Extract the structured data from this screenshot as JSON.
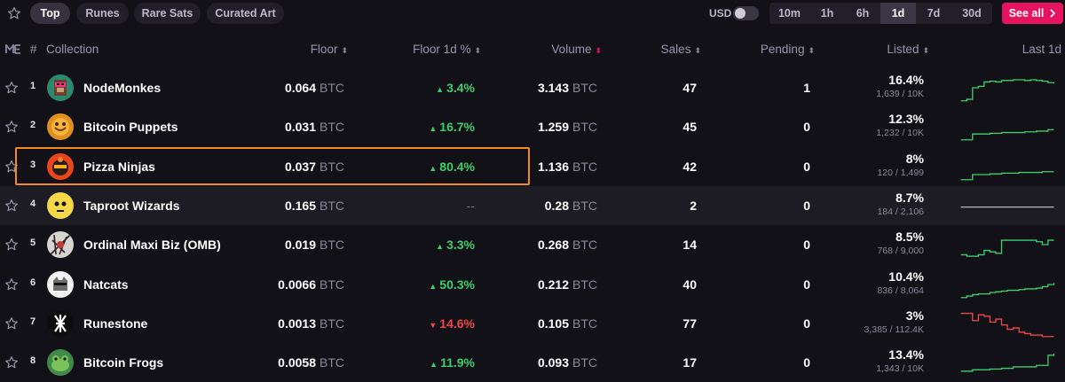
{
  "tabs": [
    {
      "label": "Top",
      "active": true
    },
    {
      "label": "Runes",
      "active": false
    },
    {
      "label": "Rare Sats",
      "active": false
    },
    {
      "label": "Curated Art",
      "active": false
    }
  ],
  "currency_toggle": {
    "label": "USD",
    "enabled": false
  },
  "timeframes": [
    {
      "label": "10m",
      "active": false
    },
    {
      "label": "1h",
      "active": false
    },
    {
      "label": "6h",
      "active": false
    },
    {
      "label": "1d",
      "active": true
    },
    {
      "label": "7d",
      "active": false
    },
    {
      "label": "30d",
      "active": false
    }
  ],
  "see_all_label": "See all",
  "columns": {
    "rank": "#",
    "collection": "Collection",
    "floor": "Floor",
    "floor_change": "Floor 1d %",
    "volume": "Volume",
    "sales": "Sales",
    "pending": "Pending",
    "listed": "Listed",
    "last": "Last 1d"
  },
  "rows": [
    {
      "rank": "1",
      "name": "NodeMonkes",
      "floor": "0.064",
      "floor_unit": "BTC",
      "change": "3.4%",
      "direction": "up",
      "volume": "3.143",
      "volume_unit": "BTC",
      "sales": "47",
      "pending": "1",
      "listed_pct": "16.4%",
      "listed_count": "1,639 / 10K",
      "spark_color": "#3ecf6b",
      "spark": [
        40,
        38,
        22,
        20,
        14,
        13,
        14,
        12,
        12,
        11,
        11,
        12,
        11,
        12,
        13,
        15,
        16
      ]
    },
    {
      "rank": "2",
      "name": "Bitcoin Puppets",
      "floor": "0.031",
      "floor_unit": "BTC",
      "change": "16.7%",
      "direction": "up",
      "volume": "1.259",
      "volume_unit": "BTC",
      "sales": "45",
      "pending": "0",
      "listed_pct": "12.3%",
      "listed_count": "1,232 / 10K",
      "spark_color": "#3ecf6b",
      "spark": [
        40,
        40,
        32,
        32,
        32,
        31,
        31,
        30,
        30,
        30,
        30,
        29,
        29,
        28,
        28,
        26,
        26
      ]
    },
    {
      "rank": "3",
      "name": "Pizza Ninjas",
      "floor": "0.037",
      "floor_unit": "BTC",
      "change": "80.4%",
      "direction": "up",
      "volume": "1.136",
      "volume_unit": "BTC",
      "sales": "42",
      "pending": "0",
      "listed_pct": "8%",
      "listed_count": "120 / 1,499",
      "spark_color": "#3ecf6b",
      "spark": [
        40,
        40,
        33,
        33,
        33,
        32,
        32,
        31,
        31,
        31,
        30,
        30,
        30,
        30,
        29,
        29,
        29
      ]
    },
    {
      "rank": "4",
      "name": "Taproot Wizards",
      "floor": "0.165",
      "floor_unit": "BTC",
      "change": "--",
      "direction": "none",
      "volume": "0.28",
      "volume_unit": "BTC",
      "sales": "2",
      "pending": "0",
      "listed_pct": "8.7%",
      "listed_count": "184 / 2,106",
      "spark_color": "#bdb8c9",
      "spark": [
        24,
        24,
        24,
        24,
        24,
        24,
        24,
        24,
        24,
        24,
        24,
        24,
        24,
        24,
        24,
        24,
        24
      ]
    },
    {
      "rank": "5",
      "name": "Ordinal Maxi Biz (OMB)",
      "floor": "0.019",
      "floor_unit": "BTC",
      "change": "3.3%",
      "direction": "up",
      "volume": "0.268",
      "volume_unit": "BTC",
      "sales": "14",
      "pending": "0",
      "listed_pct": "8.5%",
      "listed_count": "768 / 9,000",
      "spark_color": "#3ecf6b",
      "spark": [
        36,
        38,
        38,
        36,
        30,
        32,
        34,
        16,
        16,
        16,
        16,
        16,
        16,
        18,
        22,
        16,
        16
      ]
    },
    {
      "rank": "6",
      "name": "Natcats",
      "floor": "0.0066",
      "floor_unit": "BTC",
      "change": "50.3%",
      "direction": "up",
      "volume": "0.212",
      "volume_unit": "BTC",
      "sales": "40",
      "pending": "0",
      "listed_pct": "10.4%",
      "listed_count": "836 / 8,064",
      "spark_color": "#3ecf6b",
      "spark": [
        40,
        38,
        36,
        35,
        35,
        33,
        32,
        31,
        30,
        30,
        29,
        28,
        28,
        27,
        25,
        22,
        20
      ]
    },
    {
      "rank": "7",
      "name": "Runestone",
      "floor": "0.0013",
      "floor_unit": "BTC",
      "change": "14.6%",
      "direction": "down",
      "volume": "0.105",
      "volume_unit": "BTC",
      "sales": "77",
      "pending": "0",
      "listed_pct": "3%",
      "listed_count": "3,385 / 112.4K",
      "spark_color": "#f04848",
      "spark": [
        8,
        8,
        18,
        10,
        12,
        20,
        16,
        24,
        30,
        28,
        34,
        36,
        38,
        38,
        40,
        40,
        40
      ]
    },
    {
      "rank": "8",
      "name": "Bitcoin Frogs",
      "floor": "0.0058",
      "floor_unit": "BTC",
      "change": "11.9%",
      "direction": "up",
      "volume": "0.093",
      "volume_unit": "BTC",
      "sales": "17",
      "pending": "0",
      "listed_pct": "13.4%",
      "listed_count": "1,343 / 10K",
      "spark_color": "#3ecf6b",
      "spark": [
        34,
        34,
        32,
        32,
        32,
        31,
        31,
        30,
        30,
        28,
        28,
        28,
        28,
        26,
        26,
        12,
        10
      ]
    }
  ],
  "icons": {
    "favorite": "star-outline-icon",
    "see_all_arrow": "chevron-right-icon",
    "brand": "magic-eden-logo-icon"
  },
  "colors": {
    "accent": "#e6135f",
    "up": "#3ecf6b",
    "down": "#f04848",
    "highlight_box": "#f58a20"
  }
}
